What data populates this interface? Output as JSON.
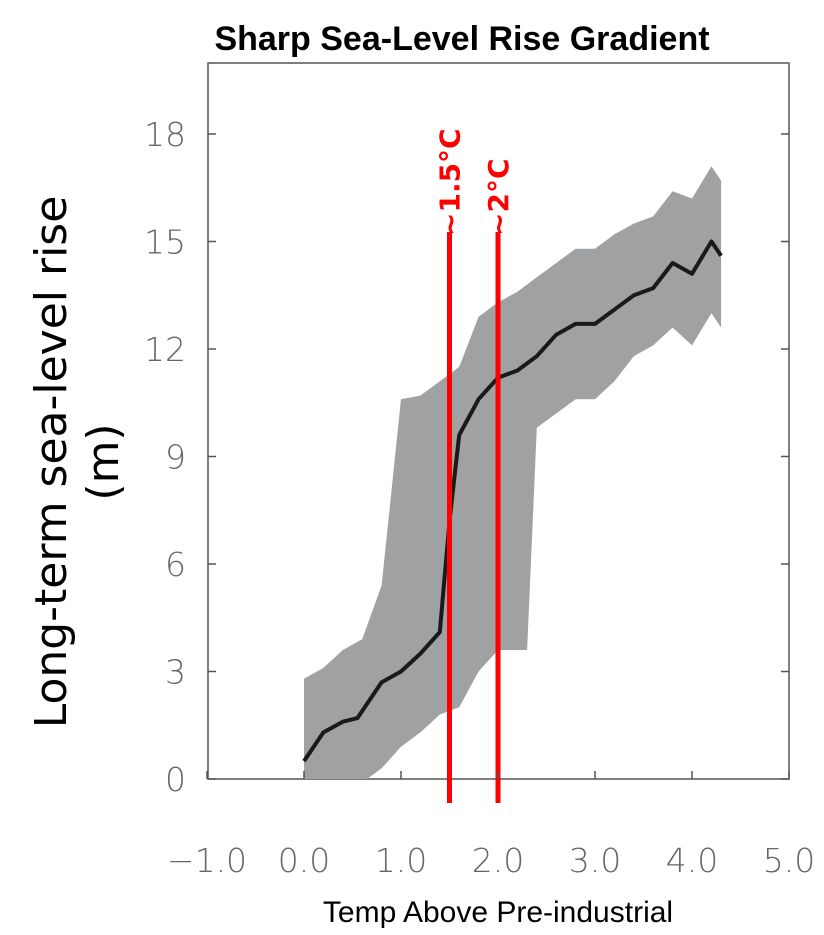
{
  "chart_data": {
    "type": "line",
    "title": "Sharp Sea-Level Rise Gradient",
    "xlabel": "Temp Above Pre-industrial",
    "ylabel_line1": "Long-term sea-level rise",
    "ylabel_line2": "(m)",
    "xlim": [
      -1.0,
      5.0
    ],
    "ylim": [
      0,
      18
    ],
    "x_ticks": [
      "−1.0",
      "0.0",
      "1.0",
      "2.0",
      "3.0",
      "4.0",
      "5.0"
    ],
    "x_tick_values": [
      -1.0,
      0.0,
      1.0,
      2.0,
      3.0,
      4.0,
      5.0
    ],
    "y_ticks": [
      "0",
      "3",
      "6",
      "9",
      "12",
      "15",
      "18"
    ],
    "y_tick_values": [
      0,
      3,
      6,
      9,
      12,
      15,
      18
    ],
    "grid": false,
    "series": [
      {
        "color": "#1a1a1a",
        "x": [
          0.0,
          0.2,
          0.4,
          0.55,
          0.8,
          1.0,
          1.2,
          1.4,
          1.5,
          1.6,
          1.8,
          2.0,
          2.2,
          2.4,
          2.6,
          2.8,
          3.0,
          3.2,
          3.4,
          3.6,
          3.8,
          4.0,
          4.2,
          4.3
        ],
        "y": [
          0.5,
          1.3,
          1.6,
          1.7,
          2.7,
          3.0,
          3.5,
          4.1,
          7.2,
          9.6,
          10.6,
          11.2,
          11.4,
          11.8,
          12.4,
          12.7,
          12.7,
          13.1,
          13.5,
          13.7,
          14.4,
          14.1,
          15.0,
          14.6
        ]
      }
    ],
    "uncertainty_band": {
      "color": "#a0a1a3",
      "upper": [
        [
          0.0,
          2.8
        ],
        [
          0.2,
          3.1
        ],
        [
          0.4,
          3.6
        ],
        [
          0.6,
          3.9
        ],
        [
          0.8,
          5.4
        ],
        [
          1.0,
          10.6
        ],
        [
          1.2,
          10.7
        ],
        [
          1.4,
          11.1
        ],
        [
          1.6,
          11.5
        ],
        [
          1.8,
          12.9
        ],
        [
          2.0,
          13.3
        ],
        [
          2.2,
          13.6
        ],
        [
          2.4,
          14.0
        ],
        [
          2.6,
          14.4
        ],
        [
          2.8,
          14.8
        ],
        [
          3.0,
          14.8
        ],
        [
          3.2,
          15.2
        ],
        [
          3.4,
          15.5
        ],
        [
          3.6,
          15.7
        ],
        [
          3.8,
          16.4
        ],
        [
          4.0,
          16.2
        ],
        [
          4.2,
          17.1
        ],
        [
          4.3,
          16.7
        ]
      ],
      "lower": [
        [
          4.3,
          12.6
        ],
        [
          4.2,
          13.0
        ],
        [
          4.0,
          12.1
        ],
        [
          3.8,
          12.6
        ],
        [
          3.6,
          12.1
        ],
        [
          3.4,
          11.8
        ],
        [
          3.2,
          11.1
        ],
        [
          3.0,
          10.6
        ],
        [
          2.8,
          10.6
        ],
        [
          2.6,
          10.2
        ],
        [
          2.4,
          9.8
        ],
        [
          2.3,
          3.6
        ],
        [
          2.0,
          3.6
        ],
        [
          1.8,
          3.0
        ],
        [
          1.6,
          2.0
        ],
        [
          1.4,
          1.8
        ],
        [
          1.2,
          1.3
        ],
        [
          1.0,
          0.9
        ],
        [
          0.8,
          0.3
        ],
        [
          0.65,
          0.0
        ],
        [
          0.0,
          0.0
        ]
      ]
    },
    "markers": [
      {
        "x": 1.5,
        "label": "~1.5°C",
        "color": "#ff0000"
      },
      {
        "x": 2.0,
        "label": "~2°C",
        "color": "#ff0000"
      }
    ]
  }
}
